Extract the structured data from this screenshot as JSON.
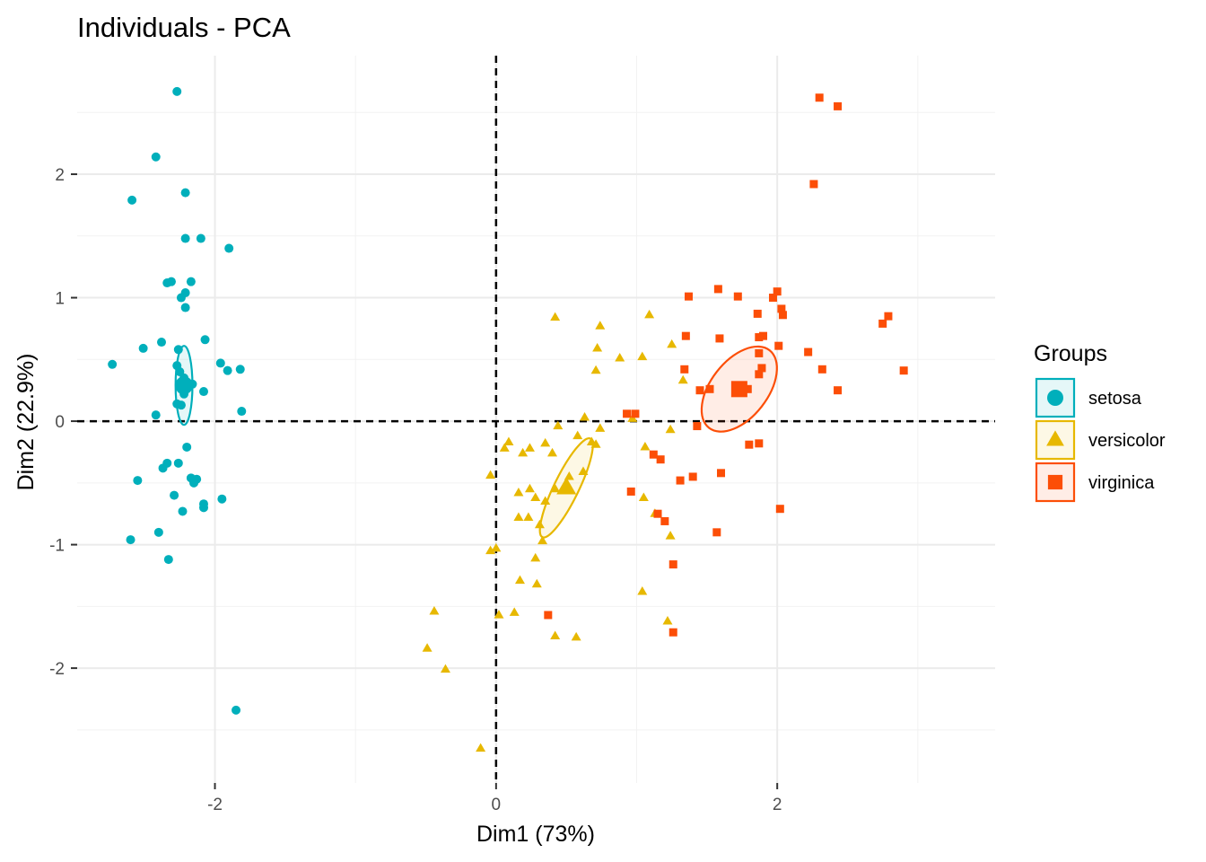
{
  "chart_data": {
    "type": "scatter",
    "title": "Individuals - PCA",
    "xlabel": "Dim1 (73%)",
    "ylabel": "Dim2 (22.9%)",
    "xlim": [
      -2.98,
      3.55
    ],
    "ylim": [
      -2.93,
      2.96
    ],
    "x_ticks": [
      -2,
      0,
      2
    ],
    "x_tick_labels": [
      "-2",
      "0",
      "2"
    ],
    "y_ticks": [
      -2,
      -1,
      0,
      1,
      2
    ],
    "y_tick_labels": [
      "-2",
      "-1",
      "0",
      "1",
      "2"
    ],
    "grid": true,
    "reference_lines": {
      "x": 0,
      "y": 0,
      "style": "dashed"
    },
    "legend": {
      "title": "Groups",
      "placement": "right"
    },
    "series": [
      {
        "name": "setosa",
        "marker": "circle",
        "color": "#00AFBB",
        "mean": [
          -2.22,
          0.29
        ],
        "ellipse": {
          "rx": 0.06,
          "ry": 0.32,
          "angle": 0
        },
        "points": [
          [
            -2.27,
            2.67
          ],
          [
            -2.42,
            2.14
          ],
          [
            -2.59,
            1.79
          ],
          [
            -2.21,
            1.85
          ],
          [
            -2.21,
            1.48
          ],
          [
            -2.1,
            1.48
          ],
          [
            -1.9,
            1.4
          ],
          [
            -2.34,
            1.12
          ],
          [
            -2.31,
            1.13
          ],
          [
            -2.17,
            1.13
          ],
          [
            -2.21,
            1.04
          ],
          [
            -2.24,
            1.0
          ],
          [
            -2.21,
            0.92
          ],
          [
            -2.38,
            0.64
          ],
          [
            -2.07,
            0.66
          ],
          [
            -2.51,
            0.59
          ],
          [
            -2.26,
            0.58
          ],
          [
            -2.73,
            0.46
          ],
          [
            -1.96,
            0.47
          ],
          [
            -2.27,
            0.45
          ],
          [
            -2.25,
            0.4
          ],
          [
            -1.91,
            0.41
          ],
          [
            -1.82,
            0.42
          ],
          [
            -2.22,
            0.35
          ],
          [
            -2.2,
            0.31
          ],
          [
            -2.16,
            0.3
          ],
          [
            -2.24,
            0.26
          ],
          [
            -2.22,
            0.22
          ],
          [
            -2.08,
            0.24
          ],
          [
            -2.27,
            0.14
          ],
          [
            -2.24,
            0.13
          ],
          [
            -1.81,
            0.08
          ],
          [
            -2.42,
            0.05
          ],
          [
            -2.2,
            -0.21
          ],
          [
            -2.34,
            -0.34
          ],
          [
            -2.26,
            -0.34
          ],
          [
            -2.37,
            -0.38
          ],
          [
            -2.17,
            -0.46
          ],
          [
            -2.13,
            -0.47
          ],
          [
            -2.55,
            -0.48
          ],
          [
            -2.15,
            -0.5
          ],
          [
            -2.29,
            -0.6
          ],
          [
            -1.95,
            -0.63
          ],
          [
            -2.08,
            -0.67
          ],
          [
            -2.08,
            -0.7
          ],
          [
            -2.23,
            -0.73
          ],
          [
            -2.6,
            -0.96
          ],
          [
            -2.4,
            -0.9
          ],
          [
            -2.33,
            -1.12
          ],
          [
            -1.85,
            -2.34
          ]
        ]
      },
      {
        "name": "versicolor",
        "marker": "triangle",
        "color": "#E7B800",
        "mean": [
          0.5,
          -0.54
        ],
        "ellipse": {
          "rx": 0.39,
          "ry": 0.1,
          "angle": -64
        },
        "points": [
          [
            0.42,
            0.84
          ],
          [
            1.09,
            0.86
          ],
          [
            0.74,
            0.77
          ],
          [
            0.72,
            0.59
          ],
          [
            1.25,
            0.62
          ],
          [
            0.88,
            0.51
          ],
          [
            1.04,
            0.52
          ],
          [
            0.71,
            0.41
          ],
          [
            1.33,
            0.33
          ],
          [
            0.63,
            0.03
          ],
          [
            0.44,
            -0.04
          ],
          [
            0.97,
            0.02
          ],
          [
            0.74,
            -0.06
          ],
          [
            0.58,
            -0.12
          ],
          [
            0.68,
            -0.17
          ],
          [
            0.71,
            -0.19
          ],
          [
            0.35,
            -0.18
          ],
          [
            0.09,
            -0.17
          ],
          [
            0.06,
            -0.22
          ],
          [
            0.24,
            -0.22
          ],
          [
            0.4,
            -0.26
          ],
          [
            1.06,
            -0.21
          ],
          [
            1.24,
            -0.07
          ],
          [
            0.19,
            -0.26
          ],
          [
            0.62,
            -0.41
          ],
          [
            0.52,
            -0.45
          ],
          [
            -0.04,
            -0.44
          ],
          [
            0.24,
            -0.55
          ],
          [
            0.16,
            -0.58
          ],
          [
            0.28,
            -0.62
          ],
          [
            0.35,
            -0.65
          ],
          [
            0.42,
            -0.55
          ],
          [
            1.05,
            -0.62
          ],
          [
            1.13,
            -0.75
          ],
          [
            0.16,
            -0.78
          ],
          [
            0.23,
            -0.78
          ],
          [
            0.31,
            -0.84
          ],
          [
            1.24,
            -0.93
          ],
          [
            0.33,
            -0.97
          ],
          [
            0.0,
            -1.03
          ],
          [
            -0.04,
            -1.05
          ],
          [
            0.28,
            -1.11
          ],
          [
            0.17,
            -1.29
          ],
          [
            0.29,
            -1.32
          ],
          [
            1.04,
            -1.38
          ],
          [
            -0.44,
            -1.54
          ],
          [
            0.02,
            -1.57
          ],
          [
            0.13,
            -1.55
          ],
          [
            0.42,
            -1.74
          ],
          [
            0.57,
            -1.75
          ],
          [
            1.22,
            -1.62
          ],
          [
            -0.49,
            -1.84
          ],
          [
            -0.36,
            -2.01
          ],
          [
            -0.11,
            -2.65
          ]
        ]
      },
      {
        "name": "virginica",
        "marker": "square",
        "color": "#FC4E07",
        "mean": [
          1.73,
          0.26
        ],
        "ellipse": {
          "rx": 0.35,
          "ry": 0.23,
          "angle": -52
        },
        "points": [
          [
            2.3,
            2.62
          ],
          [
            2.43,
            2.55
          ],
          [
            2.26,
            1.92
          ],
          [
            1.58,
            1.07
          ],
          [
            1.72,
            1.01
          ],
          [
            2.0,
            1.05
          ],
          [
            1.97,
            1.0
          ],
          [
            1.37,
            1.01
          ],
          [
            2.03,
            0.91
          ],
          [
            1.86,
            0.87
          ],
          [
            2.04,
            0.86
          ],
          [
            2.79,
            0.85
          ],
          [
            2.75,
            0.79
          ],
          [
            1.35,
            0.69
          ],
          [
            1.59,
            0.67
          ],
          [
            1.9,
            0.69
          ],
          [
            1.87,
            0.68
          ],
          [
            2.01,
            0.61
          ],
          [
            2.22,
            0.56
          ],
          [
            1.87,
            0.55
          ],
          [
            1.34,
            0.42
          ],
          [
            1.89,
            0.43
          ],
          [
            1.87,
            0.38
          ],
          [
            2.32,
            0.42
          ],
          [
            2.9,
            0.41
          ],
          [
            1.52,
            0.26
          ],
          [
            1.45,
            0.25
          ],
          [
            1.79,
            0.26
          ],
          [
            2.43,
            0.25
          ],
          [
            0.93,
            0.06
          ],
          [
            0.99,
            0.06
          ],
          [
            1.43,
            -0.04
          ],
          [
            1.12,
            -0.27
          ],
          [
            1.17,
            -0.31
          ],
          [
            1.87,
            -0.18
          ],
          [
            1.8,
            -0.19
          ],
          [
            1.6,
            -0.42
          ],
          [
            1.4,
            -0.45
          ],
          [
            1.31,
            -0.48
          ],
          [
            0.96,
            -0.57
          ],
          [
            1.15,
            -0.75
          ],
          [
            1.2,
            -0.81
          ],
          [
            2.02,
            -0.71
          ],
          [
            1.57,
            -0.9
          ],
          [
            1.26,
            -1.16
          ],
          [
            0.37,
            -1.57
          ],
          [
            1.26,
            -1.71
          ]
        ]
      }
    ]
  }
}
